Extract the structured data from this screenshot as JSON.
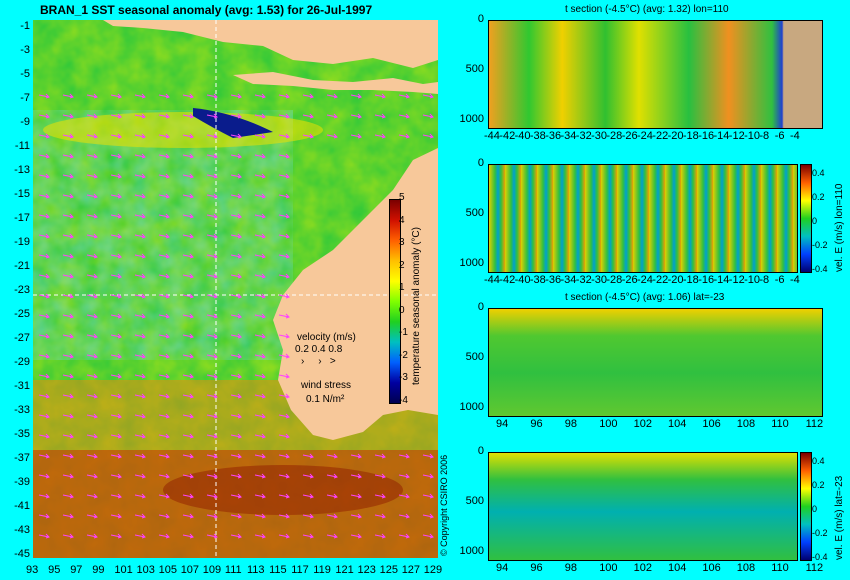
{
  "map": {
    "title": "BRAN_1 SST seasonal anomaly (avg: 1.53) for 26-Jul-1997",
    "lat_ticks": [
      "-1",
      "-3",
      "-5",
      "-7",
      "-9",
      "-11",
      "-13",
      "-15",
      "-17",
      "-19",
      "-21",
      "-23",
      "-25",
      "-27",
      "-29",
      "-31",
      "-33",
      "-35",
      "-37",
      "-39",
      "-41",
      "-43",
      "-45"
    ],
    "lon_ticks": [
      "93",
      "95",
      "97",
      "99",
      "101",
      "103",
      "105",
      "107",
      "109",
      "111",
      "113",
      "115",
      "117",
      "119",
      "121",
      "123",
      "125",
      "127",
      "129"
    ],
    "colorbar_label": "temperature seasonal anomaly (°C)",
    "colorbar_ticks": [
      "5",
      "4",
      "3",
      "2",
      "1",
      "0",
      "-1",
      "-2",
      "-3",
      "-4"
    ],
    "velocity_legend": {
      "title": "velocity (m/s)",
      "scale": "0.2 0.4 0.8"
    },
    "wind_legend": {
      "title": "wind stress",
      "scale": "0.1 N/m²"
    },
    "copyright": "© Copyright CSIRO 2006",
    "colors": {
      "land": "#f7c89a",
      "ocean": "#28c83c",
      "warm": "#d03c00",
      "cold": "#0a1c8c",
      "arrows": "#ff40ff"
    }
  },
  "panels": {
    "p1": {
      "title": "t section (-4.5°C) (avg: 1.32) lon=110",
      "x_ticks": [
        "-44",
        "-42",
        "-40",
        "-38",
        "-36",
        "-34",
        "-32",
        "-30",
        "-28",
        "-26",
        "-24",
        "-22",
        "-20",
        "-18",
        "-16",
        "-14",
        "-12",
        "-10",
        "-8",
        "-6",
        "-4"
      ],
      "y_ticks": [
        "0",
        "500",
        "1000"
      ]
    },
    "p2": {
      "x_ticks": [
        "-44",
        "-42",
        "-40",
        "-38",
        "-36",
        "-34",
        "-32",
        "-30",
        "-28",
        "-26",
        "-24",
        "-22",
        "-20",
        "-18",
        "-16",
        "-14",
        "-12",
        "-10",
        "-8",
        "-6",
        "-4"
      ],
      "y_ticks": [
        "0",
        "500",
        "1000"
      ],
      "colorbar_label": "vel. E (m/s) lon=110",
      "colorbar_ticks": [
        "0.4",
        "0.2",
        "0",
        "-0.2",
        "-0.4"
      ]
    },
    "p3": {
      "title": "t section (-4.5°C) (avg: 1.06) lat=-23",
      "x_ticks": [
        "94",
        "96",
        "98",
        "100",
        "102",
        "104",
        "106",
        "108",
        "110",
        "112"
      ],
      "y_ticks": [
        "0",
        "500",
        "1000"
      ]
    },
    "p4": {
      "x_ticks": [
        "94",
        "96",
        "98",
        "100",
        "102",
        "104",
        "106",
        "108",
        "110",
        "112"
      ],
      "y_ticks": [
        "0",
        "500",
        "1000"
      ],
      "colorbar_label": "vel. E (m/s) lat=-23",
      "colorbar_ticks": [
        "0.4",
        "0.2",
        "0",
        "-0.2",
        "-0.4"
      ]
    }
  }
}
